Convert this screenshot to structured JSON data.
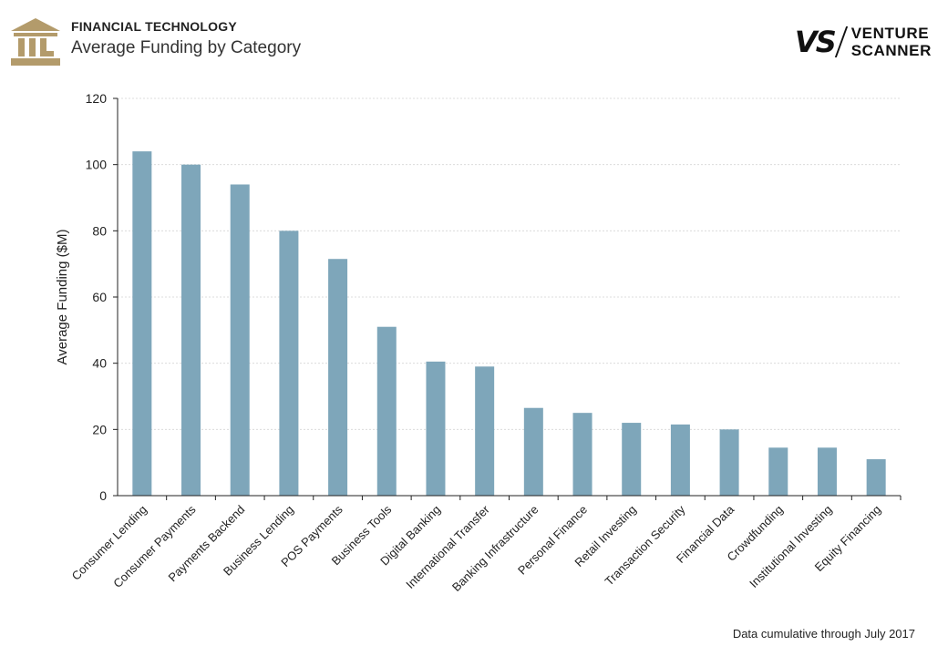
{
  "header": {
    "kicker": "FINANCIAL TECHNOLOGY",
    "title": "Average Funding by Category",
    "logo_icon": "bank-building-icon",
    "brand_mark": "VS",
    "brand_line1": "VENTURE",
    "brand_line2": "SCANNER"
  },
  "colors": {
    "bar": "#7ea6ba",
    "logo": "#b39b6b",
    "grid": "#dcdcdc",
    "axis": "#222222"
  },
  "chart_data": {
    "type": "bar",
    "title": "Average Funding by Category",
    "xlabel": "",
    "ylabel": "Average Funding ($M)",
    "ylim": [
      0,
      120
    ],
    "yticks": [
      0,
      20,
      40,
      60,
      80,
      100,
      120
    ],
    "grid": true,
    "legend": "none",
    "categories": [
      "Consumer Lending",
      "Consumer Payments",
      "Payments Backend",
      "Business Lending",
      "POS Payments",
      "Business Tools",
      "Digital Banking",
      "International Transfer",
      "Banking Infrastructure",
      "Personal Finance",
      "Retail Investing",
      "Transaction Security",
      "Financial Data",
      "Crowdfunding",
      "Institutional Investing",
      "Equity Financing"
    ],
    "values": [
      104,
      100,
      94,
      80,
      71.5,
      51,
      40.5,
      39,
      26.5,
      25,
      22,
      21.5,
      20,
      14.5,
      14.5,
      11
    ]
  },
  "footer": {
    "note": "Data cumulative through July 2017"
  }
}
